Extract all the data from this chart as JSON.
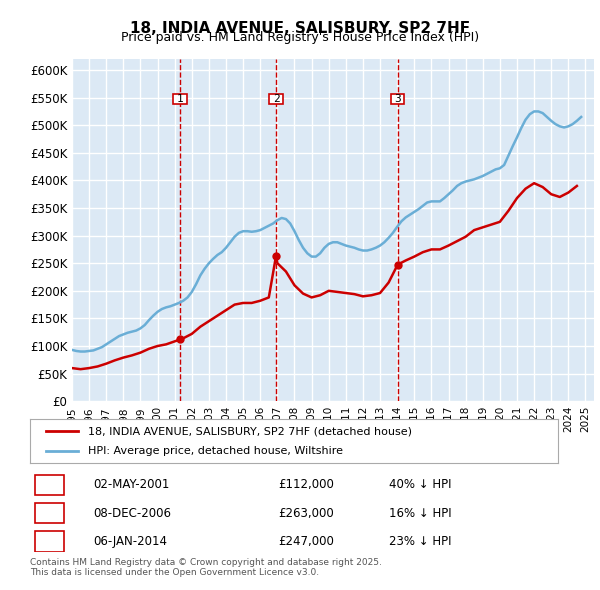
{
  "title": "18, INDIA AVENUE, SALISBURY, SP2 7HF",
  "subtitle": "Price paid vs. HM Land Registry's House Price Index (HPI)",
  "legend_line1": "18, INDIA AVENUE, SALISBURY, SP2 7HF (detached house)",
  "legend_line2": "HPI: Average price, detached house, Wiltshire",
  "footer1": "Contains HM Land Registry data © Crown copyright and database right 2025.",
  "footer2": "This data is licensed under the Open Government Licence v3.0.",
  "ylim": [
    0,
    620000
  ],
  "yticks": [
    0,
    50000,
    100000,
    150000,
    200000,
    250000,
    300000,
    350000,
    400000,
    450000,
    500000,
    550000,
    600000
  ],
  "ytick_labels": [
    "£0",
    "£50K",
    "£100K",
    "£150K",
    "£200K",
    "£250K",
    "£300K",
    "£350K",
    "£400K",
    "£450K",
    "£500K",
    "£550K",
    "£600K"
  ],
  "bg_color": "#dce9f5",
  "plot_bg_color": "#dce9f5",
  "grid_color": "white",
  "hpi_color": "#6aaed6",
  "price_color": "#cc0000",
  "vline_color": "#cc0000",
  "marker_box_color": "#cc0000",
  "transactions": [
    {
      "num": 1,
      "date": "02-MAY-2001",
      "year": 2001.33,
      "price": 112000,
      "label": "02-MAY-2001",
      "price_str": "£112,000",
      "pct": "40% ↓ HPI"
    },
    {
      "num": 2,
      "date": "08-DEC-2006",
      "year": 2006.92,
      "price": 263000,
      "label": "08-DEC-2006",
      "price_str": "£263,000",
      "pct": "16% ↓ HPI"
    },
    {
      "num": 3,
      "date": "06-JAN-2014",
      "year": 2014.02,
      "price": 247000,
      "label": "06-JAN-2014",
      "price_str": "£247,000",
      "pct": "23% ↓ HPI"
    }
  ],
  "hpi_data": {
    "years": [
      1995.0,
      1995.25,
      1995.5,
      1995.75,
      1996.0,
      1996.25,
      1996.5,
      1996.75,
      1997.0,
      1997.25,
      1997.5,
      1997.75,
      1998.0,
      1998.25,
      1998.5,
      1998.75,
      1999.0,
      1999.25,
      1999.5,
      1999.75,
      2000.0,
      2000.25,
      2000.5,
      2000.75,
      2001.0,
      2001.25,
      2001.5,
      2001.75,
      2002.0,
      2002.25,
      2002.5,
      2002.75,
      2003.0,
      2003.25,
      2003.5,
      2003.75,
      2004.0,
      2004.25,
      2004.5,
      2004.75,
      2005.0,
      2005.25,
      2005.5,
      2005.75,
      2006.0,
      2006.25,
      2006.5,
      2006.75,
      2007.0,
      2007.25,
      2007.5,
      2007.75,
      2008.0,
      2008.25,
      2008.5,
      2008.75,
      2009.0,
      2009.25,
      2009.5,
      2009.75,
      2010.0,
      2010.25,
      2010.5,
      2010.75,
      2011.0,
      2011.25,
      2011.5,
      2011.75,
      2012.0,
      2012.25,
      2012.5,
      2012.75,
      2013.0,
      2013.25,
      2013.5,
      2013.75,
      2014.0,
      2014.25,
      2014.5,
      2014.75,
      2015.0,
      2015.25,
      2015.5,
      2015.75,
      2016.0,
      2016.25,
      2016.5,
      2016.75,
      2017.0,
      2017.25,
      2017.5,
      2017.75,
      2018.0,
      2018.25,
      2018.5,
      2018.75,
      2019.0,
      2019.25,
      2019.5,
      2019.75,
      2020.0,
      2020.25,
      2020.5,
      2020.75,
      2021.0,
      2021.25,
      2021.5,
      2021.75,
      2022.0,
      2022.25,
      2022.5,
      2022.75,
      2023.0,
      2023.25,
      2023.5,
      2023.75,
      2024.0,
      2024.25,
      2024.5,
      2024.75
    ],
    "values": [
      93000,
      91000,
      90000,
      90000,
      91000,
      92000,
      95000,
      98000,
      103000,
      108000,
      113000,
      118000,
      121000,
      124000,
      126000,
      128000,
      132000,
      138000,
      147000,
      155000,
      162000,
      167000,
      170000,
      172000,
      175000,
      178000,
      182000,
      188000,
      198000,
      212000,
      228000,
      240000,
      250000,
      258000,
      265000,
      270000,
      278000,
      288000,
      298000,
      305000,
      308000,
      308000,
      307000,
      308000,
      310000,
      314000,
      318000,
      322000,
      328000,
      332000,
      330000,
      322000,
      308000,
      292000,
      278000,
      268000,
      262000,
      262000,
      268000,
      278000,
      285000,
      288000,
      288000,
      285000,
      282000,
      280000,
      278000,
      275000,
      273000,
      273000,
      275000,
      278000,
      282000,
      288000,
      296000,
      305000,
      316000,
      326000,
      333000,
      338000,
      343000,
      348000,
      354000,
      360000,
      362000,
      362000,
      362000,
      368000,
      375000,
      382000,
      390000,
      395000,
      398000,
      400000,
      402000,
      405000,
      408000,
      412000,
      416000,
      420000,
      422000,
      428000,
      445000,
      462000,
      478000,
      495000,
      510000,
      520000,
      525000,
      525000,
      522000,
      515000,
      508000,
      502000,
      498000,
      496000,
      498000,
      502000,
      508000,
      515000
    ]
  },
  "price_series": {
    "years": [
      1995.0,
      1995.5,
      1996.0,
      1996.5,
      1997.0,
      1997.5,
      1998.0,
      1998.5,
      1999.0,
      1999.5,
      2000.0,
      2000.5,
      2001.33,
      2001.5,
      2002.0,
      2002.5,
      2003.0,
      2003.5,
      2004.0,
      2004.5,
      2005.0,
      2005.5,
      2006.0,
      2006.5,
      2006.92,
      2007.0,
      2007.5,
      2008.0,
      2008.5,
      2009.0,
      2009.5,
      2010.0,
      2010.5,
      2011.0,
      2011.5,
      2012.0,
      2012.5,
      2013.0,
      2013.5,
      2014.02,
      2014.0,
      2014.5,
      2015.0,
      2015.5,
      2016.0,
      2016.5,
      2017.0,
      2017.5,
      2018.0,
      2018.5,
      2019.0,
      2019.5,
      2020.0,
      2020.5,
      2021.0,
      2021.5,
      2022.0,
      2022.5,
      2023.0,
      2023.5,
      2024.0,
      2024.5
    ],
    "values": [
      60000,
      58000,
      60000,
      63000,
      68000,
      74000,
      79000,
      83000,
      88000,
      95000,
      100000,
      103000,
      112000,
      114000,
      122000,
      135000,
      145000,
      155000,
      165000,
      175000,
      178000,
      178000,
      182000,
      188000,
      263000,
      250000,
      235000,
      210000,
      195000,
      188000,
      192000,
      200000,
      198000,
      196000,
      194000,
      190000,
      192000,
      196000,
      215000,
      247000,
      247000,
      255000,
      262000,
      270000,
      275000,
      275000,
      282000,
      290000,
      298000,
      310000,
      315000,
      320000,
      325000,
      345000,
      368000,
      385000,
      395000,
      388000,
      375000,
      370000,
      378000,
      390000
    ]
  }
}
